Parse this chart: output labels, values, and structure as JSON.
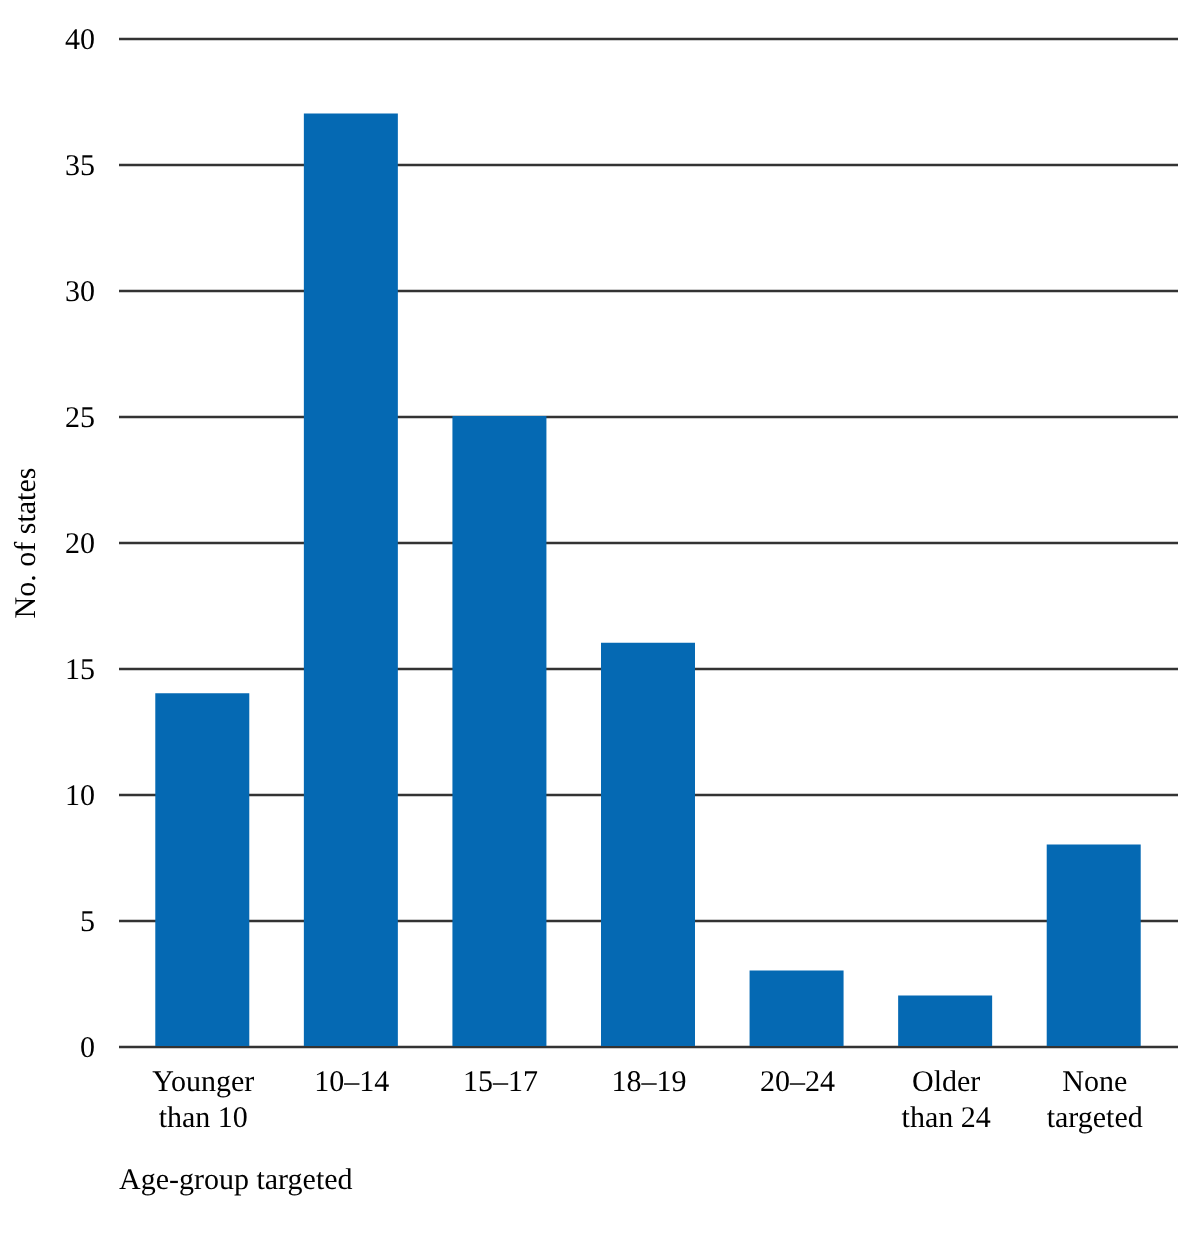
{
  "chart_data": {
    "type": "bar",
    "categories": [
      "Younger than 10",
      "10–14",
      "15–17",
      "18–19",
      "20–24",
      "Older than 24",
      "None targeted"
    ],
    "values": [
      14,
      37,
      25,
      16,
      3,
      2,
      8
    ],
    "color": "#0569b3",
    "xlabel": "Age-group targeted",
    "ylabel": "No. of states",
    "ylim": [
      0,
      40
    ],
    "yticks": [
      0,
      5,
      10,
      15,
      20,
      25,
      30,
      35,
      40
    ],
    "grid": "y"
  }
}
